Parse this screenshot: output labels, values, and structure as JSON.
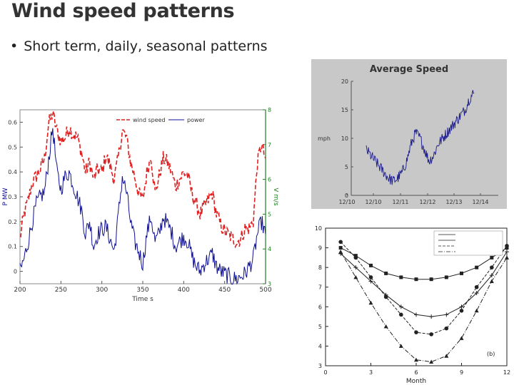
{
  "slide": {
    "title": "Wind speed patterns",
    "bullet": "Short term, daily, seasonal patterns"
  },
  "chart_data": [
    {
      "id": "short-term",
      "type": "line",
      "title": "",
      "xlabel": "Time s",
      "ylabel_left": "P MW",
      "ylabel_right": "V m/s",
      "xlim": [
        200,
        500
      ],
      "ylim_left": [
        -0.05,
        0.65
      ],
      "ylim_right": [
        3,
        8
      ],
      "xticks": [
        "200",
        "250",
        "300",
        "350",
        "400",
        "450",
        "500"
      ],
      "yticks_left": [
        "0",
        "0.1",
        "0.2",
        "0.3",
        "0.4",
        "0.5",
        "0.6"
      ],
      "yticks_right": [
        "3",
        "4",
        "5",
        "6",
        "7",
        "8"
      ],
      "legend": [
        "wind speed",
        "power"
      ],
      "colors": {
        "wind": "#e02020",
        "power": "#101090",
        "right_axis": "#208020"
      },
      "series": [
        {
          "name": "wind speed",
          "axis": "right",
          "x": [
            200,
            205,
            210,
            215,
            220,
            225,
            230,
            235,
            240,
            245,
            250,
            255,
            260,
            265,
            270,
            275,
            280,
            285,
            290,
            295,
            300,
            305,
            310,
            315,
            320,
            325,
            330,
            335,
            340,
            345,
            350,
            355,
            360,
            365,
            370,
            375,
            380,
            385,
            390,
            395,
            400,
            405,
            410,
            415,
            420,
            425,
            430,
            435,
            440,
            445,
            450,
            455,
            460,
            465,
            470,
            475,
            480,
            485,
            490,
            495,
            500
          ],
          "y": [
            4.3,
            5.0,
            5.4,
            5.9,
            6.1,
            6.3,
            6.6,
            7.6,
            7.9,
            7.4,
            7.1,
            7.2,
            7.5,
            7.3,
            7.2,
            6.8,
            6.2,
            6.5,
            6.0,
            6.3,
            6.2,
            6.7,
            6.4,
            6.0,
            6.6,
            7.4,
            7.2,
            6.5,
            6.1,
            5.6,
            5.4,
            6.2,
            6.7,
            5.6,
            6.1,
            6.6,
            6.5,
            6.2,
            5.8,
            6.0,
            6.2,
            6.1,
            5.6,
            5.3,
            5.0,
            5.2,
            5.4,
            5.6,
            5.0,
            4.7,
            4.5,
            4.4,
            4.3,
            4.2,
            4.3,
            4.6,
            4.6,
            4.8,
            6.5,
            7.0,
            6.6
          ]
        },
        {
          "name": "power",
          "axis": "left",
          "x": [
            200,
            205,
            210,
            215,
            220,
            225,
            230,
            235,
            240,
            245,
            250,
            255,
            260,
            265,
            270,
            275,
            280,
            285,
            290,
            295,
            300,
            305,
            310,
            315,
            320,
            325,
            330,
            335,
            340,
            345,
            350,
            355,
            360,
            365,
            370,
            375,
            380,
            385,
            390,
            395,
            400,
            405,
            410,
            415,
            420,
            425,
            430,
            435,
            440,
            445,
            450,
            455,
            460,
            465,
            470,
            475,
            480,
            485,
            490,
            495,
            500
          ],
          "y": [
            0.0,
            0.05,
            0.12,
            0.2,
            0.27,
            0.3,
            0.32,
            0.45,
            0.58,
            0.4,
            0.33,
            0.38,
            0.4,
            0.35,
            0.3,
            0.25,
            0.15,
            0.2,
            0.1,
            0.15,
            0.17,
            0.18,
            0.13,
            0.08,
            0.22,
            0.38,
            0.32,
            0.2,
            0.12,
            0.08,
            0.03,
            0.15,
            0.22,
            0.12,
            0.15,
            0.22,
            0.19,
            0.16,
            0.1,
            0.12,
            0.14,
            0.12,
            0.06,
            0.02,
            0.0,
            0.03,
            0.05,
            0.07,
            0.02,
            0.0,
            -0.01,
            -0.02,
            -0.03,
            -0.03,
            -0.02,
            -0.01,
            0.02,
            0.05,
            0.15,
            0.2,
            0.15
          ]
        }
      ]
    },
    {
      "id": "daily",
      "type": "line",
      "title": "Average Speed",
      "xlabel": "",
      "ylabel": "mph",
      "ylim": [
        0,
        20
      ],
      "yticks": [
        "0",
        "5",
        "10",
        "15",
        "20"
      ],
      "xticks": [
        "12/10",
        "12/10",
        "12/11",
        "12/12",
        "12/13",
        "12/14"
      ],
      "colors": {
        "line": "#1a1a8a",
        "background": "#c8c8c8"
      },
      "series": [
        {
          "name": "speed",
          "x": [
            0.0,
            0.25,
            0.5,
            0.75,
            1.0,
            1.25,
            1.5,
            1.75,
            2.0,
            2.25,
            2.5,
            2.75,
            3.0,
            3.25,
            3.5,
            3.75,
            4.0,
            4.25,
            4.5,
            4.75,
            5.0,
            5.25,
            5.5,
            5.75,
            6.0
          ],
          "y": [
            8,
            7,
            6,
            5,
            4,
            3,
            2.5,
            3,
            4,
            6,
            9,
            11,
            10,
            8,
            6,
            7,
            9,
            10,
            11,
            12,
            13,
            14,
            15,
            17,
            18
          ]
        }
      ]
    },
    {
      "id": "seasonal",
      "type": "line",
      "title": "",
      "xlabel": "Month",
      "ylabel": "",
      "annotation": "(b)",
      "xlim": [
        0,
        12
      ],
      "ylim": [
        3,
        10
      ],
      "xticks": [
        "0",
        "3",
        "6",
        "9",
        "12"
      ],
      "yticks": [
        "3",
        "4",
        "5",
        "6",
        "7",
        "8",
        "9",
        "10"
      ],
      "series": [
        {
          "x": [
            1,
            2,
            3,
            4,
            5,
            6,
            7,
            8,
            9,
            10,
            11,
            12
          ],
          "y": [
            8.7,
            8.0,
            7.3,
            6.6,
            6.0,
            5.6,
            5.5,
            5.6,
            6.0,
            6.7,
            7.6,
            8.8
          ],
          "marker": "plus"
        },
        {
          "x": [
            1,
            2,
            3,
            4,
            5,
            6,
            7,
            8,
            9,
            10,
            11,
            12
          ],
          "y": [
            9.0,
            8.6,
            8.1,
            7.7,
            7.5,
            7.4,
            7.4,
            7.5,
            7.7,
            8.0,
            8.5,
            9.0
          ],
          "marker": "square"
        },
        {
          "x": [
            1,
            2,
            3,
            4,
            5,
            6,
            7,
            8,
            9,
            10,
            11,
            12
          ],
          "y": [
            9.3,
            8.5,
            7.5,
            6.5,
            5.6,
            4.7,
            4.6,
            4.9,
            5.8,
            7.0,
            8.0,
            9.1
          ],
          "marker": "circle"
        },
        {
          "x": [
            1,
            2,
            3,
            4,
            5,
            6,
            7,
            8,
            9,
            10,
            11,
            12
          ],
          "y": [
            8.8,
            7.5,
            6.2,
            5.0,
            4.0,
            3.3,
            3.2,
            3.5,
            4.4,
            5.8,
            7.3,
            8.5
          ],
          "marker": "triangle"
        }
      ]
    }
  ]
}
